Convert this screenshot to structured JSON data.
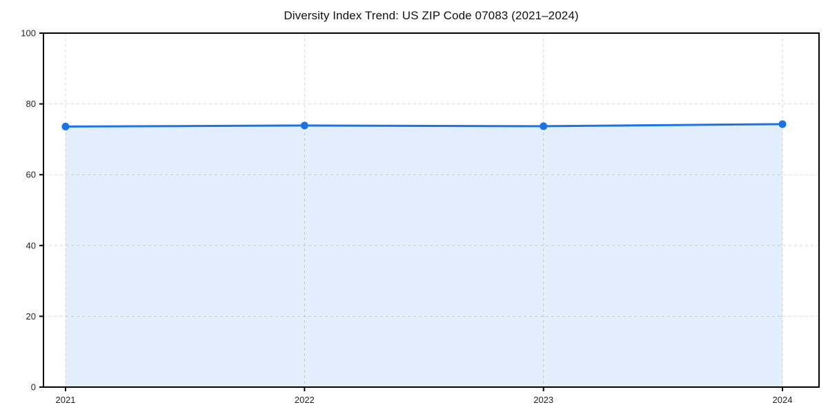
{
  "page": {
    "background": "#ffffff"
  },
  "chart_data": {
    "type": "area",
    "title": "Diversity Index Trend: US ZIP Code 07083 (2021–2024)",
    "categories": [
      "2021",
      "2022",
      "2023",
      "2024"
    ],
    "series": [
      {
        "name": "Diversity Index",
        "values": [
          73.6,
          73.9,
          73.7,
          74.3
        ]
      }
    ],
    "xlabel": "",
    "ylabel": "",
    "ylim": [
      0,
      100
    ],
    "yticks": [
      0,
      20,
      40,
      60,
      80,
      100
    ],
    "grid": true,
    "grid_style": "dashed",
    "legend_position": "none",
    "marker": "circle",
    "colors": {
      "line": "#1a73e8",
      "marker": "#1a73e8",
      "area_fill": "rgba(26,115,232,0.12)",
      "grid": "#d9d9d9",
      "frame": "#000000",
      "tick_label": "#222222",
      "title": "#111111"
    }
  }
}
